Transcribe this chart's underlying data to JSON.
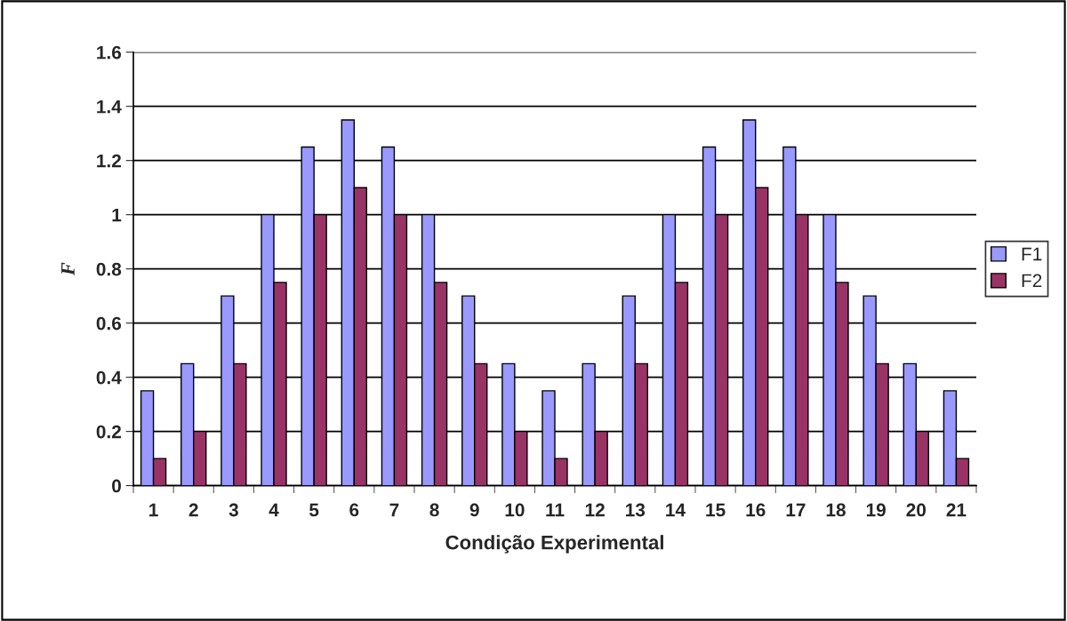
{
  "chart_data": {
    "type": "bar",
    "xlabel": "Condição Experimental",
    "ylabel": "F",
    "categories": [
      "1",
      "2",
      "3",
      "4",
      "5",
      "6",
      "7",
      "8",
      "9",
      "10",
      "11",
      "12",
      "13",
      "14",
      "15",
      "16",
      "17",
      "18",
      "19",
      "20",
      "21"
    ],
    "series": [
      {
        "name": "F1",
        "color": "#9999ff",
        "values": [
          0.35,
          0.45,
          0.7,
          1.0,
          1.25,
          1.35,
          1.25,
          1.0,
          0.7,
          0.45,
          0.35,
          0.45,
          0.7,
          1.0,
          1.25,
          1.35,
          1.25,
          1.0,
          0.7,
          0.45,
          0.35
        ]
      },
      {
        "name": "F2",
        "color": "#993366",
        "values": [
          0.1,
          0.2,
          0.45,
          0.75,
          1.0,
          1.1,
          1.0,
          0.75,
          0.45,
          0.2,
          0.1,
          0.2,
          0.45,
          0.75,
          1.0,
          1.1,
          1.0,
          0.75,
          0.45,
          0.2,
          0.1
        ]
      }
    ],
    "ylim": [
      0,
      1.6
    ],
    "yticks": [
      0,
      0.2,
      0.4,
      0.6,
      0.8,
      1,
      1.2,
      1.4,
      1.6
    ],
    "grid": "y",
    "legend": "right"
  }
}
